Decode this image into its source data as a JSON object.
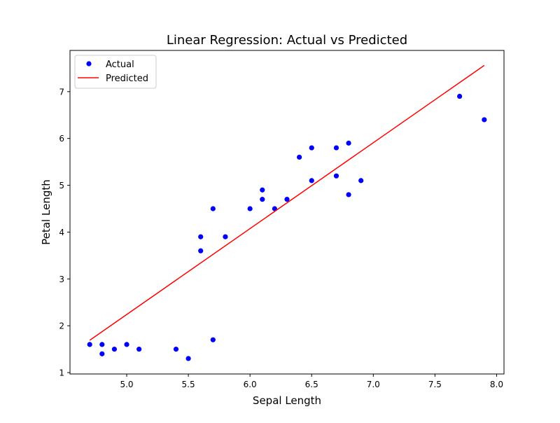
{
  "chart_data": {
    "type": "scatter",
    "title": "Linear Regression: Actual vs Predicted",
    "xlabel": "Sepal Length",
    "ylabel": "Petal Length",
    "xlim": [
      4.54,
      8.06
    ],
    "ylim": [
      0.97,
      7.88
    ],
    "xticks": [
      "5.0",
      "5.5",
      "6.0",
      "6.5",
      "7.0",
      "7.5",
      "8.0"
    ],
    "yticks": [
      "1",
      "2",
      "3",
      "4",
      "5",
      "6",
      "7"
    ],
    "grid": false,
    "legend_position": "upper-left",
    "series": [
      {
        "name": "Actual",
        "kind": "scatter",
        "color": "#0000ff",
        "points": [
          [
            4.7,
            1.6
          ],
          [
            4.8,
            1.6
          ],
          [
            4.8,
            1.4
          ],
          [
            4.9,
            1.5
          ],
          [
            5.0,
            1.6
          ],
          [
            5.1,
            1.5
          ],
          [
            5.4,
            1.5
          ],
          [
            5.5,
            1.3
          ],
          [
            5.6,
            3.9
          ],
          [
            5.6,
            3.6
          ],
          [
            5.7,
            4.5
          ],
          [
            5.7,
            1.7
          ],
          [
            5.8,
            3.9
          ],
          [
            6.0,
            4.5
          ],
          [
            6.1,
            4.9
          ],
          [
            6.1,
            4.7
          ],
          [
            6.2,
            4.5
          ],
          [
            6.3,
            4.7
          ],
          [
            6.4,
            5.6
          ],
          [
            6.5,
            5.8
          ],
          [
            6.5,
            5.1
          ],
          [
            6.7,
            5.8
          ],
          [
            6.7,
            5.2
          ],
          [
            6.8,
            5.9
          ],
          [
            6.8,
            4.8
          ],
          [
            6.9,
            5.1
          ],
          [
            7.7,
            6.9
          ],
          [
            7.9,
            6.4
          ]
        ]
      },
      {
        "name": "Predicted",
        "kind": "line",
        "color": "#ff0000",
        "points": [
          [
            4.7,
            1.69
          ],
          [
            7.9,
            7.56
          ]
        ]
      }
    ]
  }
}
